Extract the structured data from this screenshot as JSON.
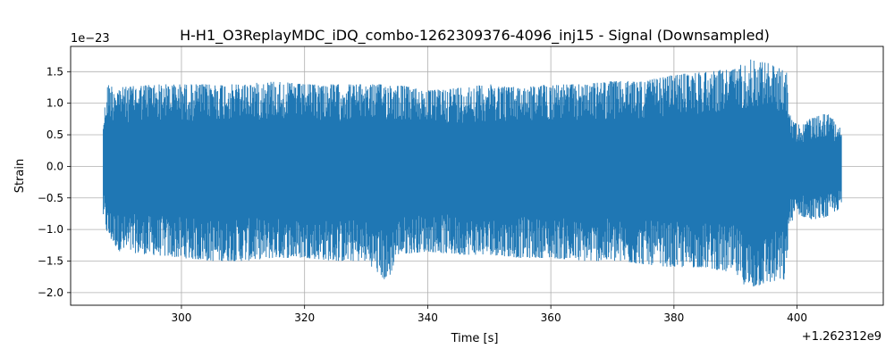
{
  "chart_data": {
    "type": "line",
    "title": "H-H1_O3ReplayMDC_iDQ_combo-1262309376-4096_inj15 - Signal (Downsampled)",
    "xlabel": "Time [s]",
    "ylabel": "Strain",
    "x_offset_label": "+1.262312e9",
    "y_scale_label": "1e−23",
    "xlim": [
      282,
      414
    ],
    "ylim": [
      -2.2,
      1.9
    ],
    "x_ticks": [
      300,
      320,
      340,
      360,
      380,
      400
    ],
    "x_tick_labels": [
      "300",
      "320",
      "340",
      "360",
      "380",
      "400"
    ],
    "y_ticks": [
      1.5,
      1.0,
      0.5,
      0.0,
      -0.5,
      -1.0,
      -1.5,
      -2.0
    ],
    "y_tick_labels": [
      "1.5",
      "1.0",
      "0.5",
      "0.0",
      "−0.5",
      "−1.0",
      "−1.5",
      "−2.0"
    ],
    "grid": true,
    "line_color": "#1f77b4",
    "series": [
      {
        "style": "dense oscillating strain signal (envelope shown)",
        "x": [
          287.3,
          288,
          290,
          295,
          300,
          305,
          310,
          315,
          320,
          325,
          330,
          333.5,
          335,
          340,
          345,
          350,
          355,
          360,
          365,
          370,
          375,
          380,
          385,
          390,
          392,
          395,
          398.3,
          398.6,
          400,
          402,
          405,
          407.2
        ],
        "upper": [
          0.75,
          1.3,
          1.25,
          1.3,
          1.3,
          1.3,
          1.3,
          1.35,
          1.3,
          1.3,
          1.3,
          1.3,
          1.3,
          1.2,
          1.25,
          1.3,
          1.25,
          1.3,
          1.3,
          1.35,
          1.35,
          1.45,
          1.5,
          1.55,
          1.7,
          1.65,
          1.5,
          0.9,
          0.65,
          0.75,
          0.85,
          0.6
        ],
        "lower": [
          -0.8,
          -1.1,
          -1.35,
          -1.4,
          -1.45,
          -1.5,
          -1.5,
          -1.45,
          -1.45,
          -1.5,
          -1.5,
          -1.85,
          -1.4,
          -1.35,
          -1.4,
          -1.4,
          -1.45,
          -1.45,
          -1.5,
          -1.5,
          -1.55,
          -1.6,
          -1.6,
          -1.7,
          -1.95,
          -1.85,
          -1.8,
          -0.95,
          -0.75,
          -0.85,
          -0.8,
          -0.65
        ]
      }
    ]
  }
}
